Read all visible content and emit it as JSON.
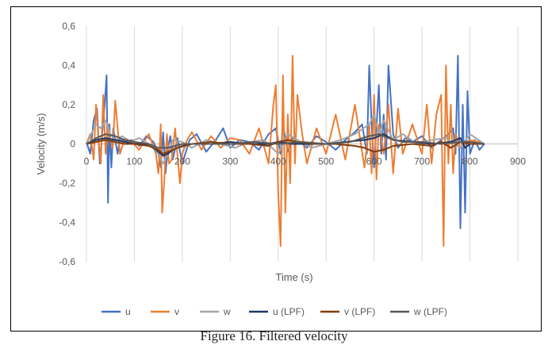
{
  "chart_data": {
    "type": "line",
    "title": "",
    "xlabel": "Time (s)",
    "ylabel": "Velocity (m/s)",
    "xlim": [
      0,
      900
    ],
    "ylim": [
      -0.6,
      0.6
    ],
    "x_ticks": [
      0,
      100,
      200,
      300,
      400,
      500,
      600,
      700,
      800,
      900
    ],
    "x_tick_labels": [
      "0",
      "100",
      "200",
      "300",
      "400",
      "500",
      "600",
      "700",
      "800",
      "900"
    ],
    "y_ticks": [
      -0.6,
      -0.4,
      -0.2,
      0,
      0.2,
      0.4,
      0.6
    ],
    "y_tick_labels": [
      "-0,6",
      "-0,4",
      "-0,2",
      "0",
      "0,2",
      "0,4",
      "0,6"
    ],
    "grid": "vertical",
    "legend_position": "bottom",
    "series": [
      {
        "name": "u",
        "color": "#4472C4",
        "width": 2,
        "x": [
          0,
          8,
          15,
          22,
          28,
          33,
          38,
          42,
          45,
          48,
          52,
          56,
          60,
          65,
          70,
          80,
          95,
          110,
          125,
          140,
          150,
          155,
          160,
          165,
          170,
          175,
          180,
          190,
          200,
          215,
          230,
          250,
          270,
          285,
          300,
          320,
          340,
          360,
          380,
          395,
          405,
          410,
          420,
          430,
          440,
          460,
          480,
          500,
          520,
          540,
          560,
          575,
          585,
          590,
          595,
          600,
          605,
          610,
          615,
          620,
          625,
          630,
          640,
          650,
          665,
          680,
          700,
          720,
          740,
          755,
          765,
          770,
          775,
          780,
          785,
          790,
          795,
          800,
          810,
          820,
          830
        ],
        "values": [
          0.01,
          -0.05,
          0.12,
          0.18,
          -0.1,
          0.05,
          0.2,
          0.35,
          -0.3,
          0.1,
          -0.12,
          0.08,
          0.02,
          -0.05,
          0.03,
          0.01,
          0.02,
          -0.01,
          0.04,
          0.01,
          -0.05,
          -0.12,
          0.06,
          -0.15,
          -0.02,
          0.04,
          -0.08,
          0.03,
          -0.1,
          0.02,
          0.05,
          -0.04,
          0.02,
          0.08,
          -0.02,
          0.02,
          0.01,
          -0.03,
          0.05,
          0.08,
          -0.05,
          0.1,
          -0.04,
          0.03,
          0.02,
          -0.02,
          0.04,
          0.01,
          -0.03,
          0.02,
          0.06,
          0.1,
          -0.05,
          0.4,
          0.1,
          -0.12,
          0.08,
          0.3,
          -0.05,
          0.15,
          -0.08,
          0.4,
          0.05,
          -0.02,
          0.03,
          0.01,
          0.04,
          -0.02,
          0.02,
          0.05,
          0.08,
          -0.05,
          0.45,
          -0.43,
          0.2,
          -0.35,
          0.27,
          -0.05,
          0.02,
          -0.03,
          0.0
        ]
      },
      {
        "name": "v",
        "color": "#ED7D31",
        "width": 2,
        "x": [
          0,
          8,
          15,
          20,
          25,
          30,
          35,
          40,
          45,
          50,
          55,
          60,
          70,
          80,
          95,
          110,
          130,
          145,
          150,
          155,
          158,
          162,
          168,
          172,
          178,
          185,
          195,
          200,
          210,
          220,
          240,
          260,
          280,
          300,
          320,
          340,
          360,
          380,
          390,
          395,
          400,
          405,
          410,
          415,
          420,
          425,
          430,
          435,
          440,
          450,
          460,
          480,
          500,
          520,
          540,
          560,
          580,
          590,
          595,
          600,
          605,
          610,
          620,
          630,
          640,
          650,
          660,
          680,
          700,
          710,
          720,
          730,
          740,
          745,
          750,
          755,
          760,
          765,
          770,
          780,
          800,
          820,
          830
        ],
        "values": [
          0.0,
          0.05,
          -0.08,
          0.2,
          0.03,
          -0.1,
          0.25,
          -0.05,
          0.1,
          0.02,
          -0.02,
          0.22,
          -0.05,
          0.03,
          0.01,
          -0.03,
          0.05,
          -0.05,
          -0.15,
          0.1,
          -0.35,
          -0.2,
          0.05,
          -0.1,
          -0.08,
          0.08,
          -0.2,
          -0.05,
          0.02,
          0.06,
          -0.03,
          0.04,
          -0.02,
          0.03,
          0.02,
          -0.05,
          0.08,
          -0.1,
          0.2,
          0.3,
          -0.25,
          -0.52,
          0.35,
          -0.35,
          0.15,
          -0.2,
          0.45,
          -0.1,
          0.25,
          0.05,
          -0.1,
          0.08,
          -0.05,
          0.15,
          -0.08,
          0.2,
          -0.12,
          0.1,
          -0.15,
          0.25,
          -0.18,
          0.1,
          -0.05,
          0.2,
          -0.15,
          0.18,
          -0.05,
          0.1,
          -0.05,
          0.2,
          -0.1,
          0.15,
          0.25,
          -0.52,
          0.4,
          -0.1,
          0.2,
          -0.15,
          0.05,
          -0.02,
          0.02,
          0.01,
          0.0
        ]
      },
      {
        "name": "w",
        "color": "#A5A5A5",
        "width": 2,
        "x": [
          0,
          10,
          20,
          30,
          40,
          50,
          60,
          75,
          90,
          110,
          130,
          150,
          160,
          170,
          180,
          200,
          220,
          250,
          280,
          310,
          340,
          370,
          400,
          420,
          440,
          470,
          500,
          530,
          560,
          590,
          600,
          610,
          620,
          640,
          660,
          690,
          720,
          750,
          780,
          800,
          830
        ],
        "values": [
          0.0,
          0.05,
          0.1,
          0.08,
          0.12,
          0.05,
          0.02,
          0.04,
          0.01,
          0.03,
          0.0,
          -0.05,
          -0.1,
          -0.05,
          0.02,
          0.01,
          -0.02,
          0.02,
          0.0,
          -0.02,
          0.01,
          0.02,
          -0.05,
          0.05,
          0.02,
          -0.02,
          0.0,
          0.02,
          0.05,
          0.1,
          0.15,
          0.05,
          0.12,
          0.02,
          0.05,
          0.0,
          0.02,
          0.03,
          -0.02,
          0.05,
          0.0
        ]
      },
      {
        "name": "u (LPF)",
        "color": "#203864",
        "width": 2,
        "x": [
          0,
          20,
          40,
          60,
          80,
          100,
          120,
          140,
          150,
          160,
          170,
          180,
          200,
          220,
          260,
          300,
          340,
          380,
          400,
          430,
          460,
          500,
          540,
          580,
          600,
          620,
          640,
          680,
          720,
          760,
          780,
          790,
          800,
          830
        ],
        "values": [
          0.0,
          0.02,
          0.03,
          0.02,
          0.01,
          0.0,
          0.0,
          -0.02,
          -0.04,
          -0.06,
          -0.05,
          -0.03,
          -0.01,
          0.0,
          0.0,
          0.01,
          0.0,
          0.0,
          0.01,
          0.0,
          0.0,
          0.0,
          0.01,
          0.02,
          0.03,
          0.05,
          0.02,
          0.01,
          0.0,
          0.01,
          0.03,
          -0.02,
          0.0,
          0.0
        ]
      },
      {
        "name": "v (LPF)",
        "color": "#843C0C",
        "width": 2,
        "x": [
          0,
          20,
          40,
          60,
          80,
          100,
          130,
          150,
          160,
          170,
          190,
          220,
          260,
          300,
          340,
          380,
          400,
          420,
          440,
          480,
          520,
          560,
          580,
          600,
          620,
          640,
          680,
          720,
          740,
          760,
          780,
          800,
          830
        ],
        "values": [
          0.0,
          0.01,
          0.02,
          0.01,
          0.0,
          0.0,
          -0.01,
          -0.03,
          -0.05,
          -0.04,
          -0.02,
          0.0,
          0.01,
          0.0,
          0.0,
          -0.01,
          0.01,
          0.02,
          0.01,
          0.0,
          0.0,
          -0.01,
          -0.02,
          -0.04,
          -0.03,
          -0.01,
          0.0,
          -0.01,
          0.01,
          -0.02,
          0.01,
          0.0,
          0.0
        ]
      },
      {
        "name": "w (LPF)",
        "color": "#595959",
        "width": 2,
        "x": [
          0,
          20,
          40,
          60,
          80,
          100,
          130,
          150,
          170,
          200,
          250,
          300,
          350,
          400,
          450,
          500,
          550,
          590,
          610,
          630,
          660,
          700,
          740,
          780,
          800,
          830
        ],
        "values": [
          0.0,
          0.03,
          0.05,
          0.04,
          0.02,
          0.01,
          0.0,
          -0.02,
          -0.02,
          0.0,
          0.0,
          0.0,
          0.01,
          0.0,
          0.01,
          0.0,
          0.01,
          0.04,
          0.05,
          0.03,
          0.01,
          0.01,
          0.0,
          0.01,
          0.01,
          0.0
        ]
      }
    ]
  },
  "caption": "Figure 16. Filtered velocity"
}
